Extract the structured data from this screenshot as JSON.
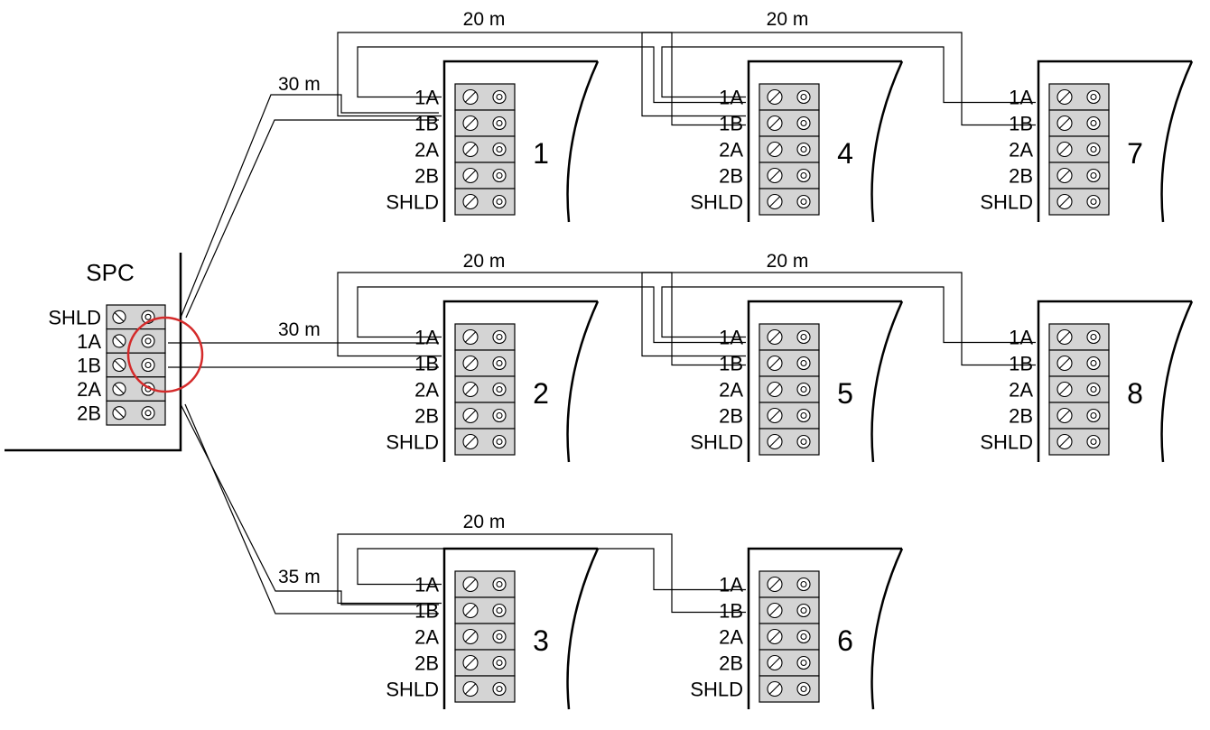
{
  "controller": {
    "label": "SPC",
    "terminals": [
      "SHLD",
      "1A",
      "1B",
      "2A",
      "2B"
    ]
  },
  "device_terminals": [
    "1A",
    "1B",
    "2A",
    "2B",
    "SHLD"
  ],
  "devices": [
    {
      "number": "1"
    },
    {
      "number": "4"
    },
    {
      "number": "7"
    },
    {
      "number": "2"
    },
    {
      "number": "5"
    },
    {
      "number": "8"
    },
    {
      "number": "3"
    },
    {
      "number": "6"
    }
  ],
  "distances": [
    {
      "text": "30 m"
    },
    {
      "text": "20 m"
    },
    {
      "text": "20 m"
    },
    {
      "text": "30 m"
    },
    {
      "text": "20 m"
    },
    {
      "text": "20 m"
    },
    {
      "text": "35 m"
    },
    {
      "text": "20 m"
    }
  ],
  "colors": {
    "line": "#000000",
    "terminal_fill": "#d4d4d4",
    "highlight_circle": "#d42a2a"
  }
}
